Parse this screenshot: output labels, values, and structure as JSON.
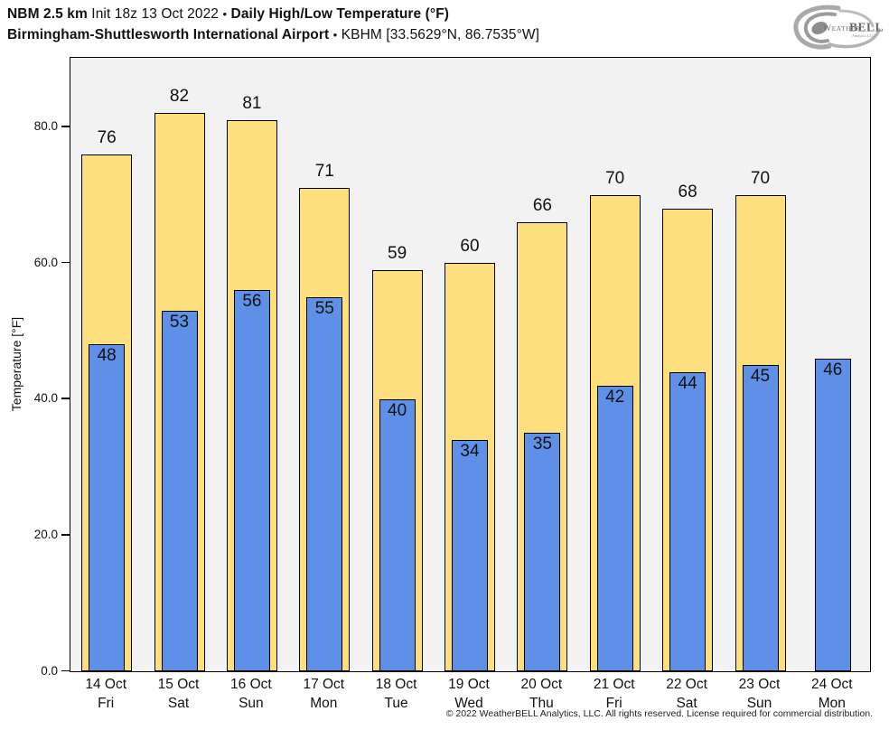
{
  "header": {
    "model": "NBM 2.5 km",
    "init": "Init 18z 13 Oct 2022",
    "sep": "•",
    "product": "Daily High/Low Temperature (°F)",
    "station": "Birmingham-Shuttlesworth International Airport",
    "station_id": "KBHM [33.5629°N, 86.7535°W]"
  },
  "logo": {
    "brand_weather": "Weather",
    "brand_bell": "BELL",
    "brand_sub": "Analytics LLC"
  },
  "chart_data": {
    "type": "bar",
    "title": "NBM 2.5 km Init 18z 13 Oct 2022 • Daily High/Low Temperature (°F)",
    "subtitle": "Birmingham-Shuttlesworth International Airport • KBHM [33.5629°N, 86.7535°W]",
    "ylabel": "Temperature [°F]",
    "xlabel": "",
    "ylim": [
      0,
      90
    ],
    "grid": false,
    "legend": "none",
    "plot_bg": "#f2f2f2",
    "yticks": [
      {
        "value": 0,
        "label": "0.0"
      },
      {
        "value": 20,
        "label": "20.0"
      },
      {
        "value": 40,
        "label": "40.0"
      },
      {
        "value": 60,
        "label": "60.0"
      },
      {
        "value": 80,
        "label": "80.0"
      }
    ],
    "categories": [
      {
        "date": "14 Oct",
        "day": "Fri"
      },
      {
        "date": "15 Oct",
        "day": "Sat"
      },
      {
        "date": "16 Oct",
        "day": "Sun"
      },
      {
        "date": "17 Oct",
        "day": "Mon"
      },
      {
        "date": "18 Oct",
        "day": "Tue"
      },
      {
        "date": "19 Oct",
        "day": "Wed"
      },
      {
        "date": "20 Oct",
        "day": "Thu"
      },
      {
        "date": "21 Oct",
        "day": "Fri"
      },
      {
        "date": "22 Oct",
        "day": "Sat"
      },
      {
        "date": "23 Oct",
        "day": "Sun"
      },
      {
        "date": "24 Oct",
        "day": "Mon"
      }
    ],
    "series": [
      {
        "name": "Daily High",
        "color": "#fde07d",
        "values": [
          76,
          82,
          81,
          71,
          59,
          60,
          66,
          70,
          68,
          70,
          null
        ]
      },
      {
        "name": "Daily Low",
        "color": "#5e90e8",
        "values": [
          48,
          53,
          56,
          55,
          40,
          34,
          35,
          42,
          44,
          45,
          46
        ]
      }
    ]
  },
  "footer": {
    "copyright": "© 2022 WeatherBELL Analytics, LLC. All rights reserved. License required for commercial distribution."
  }
}
